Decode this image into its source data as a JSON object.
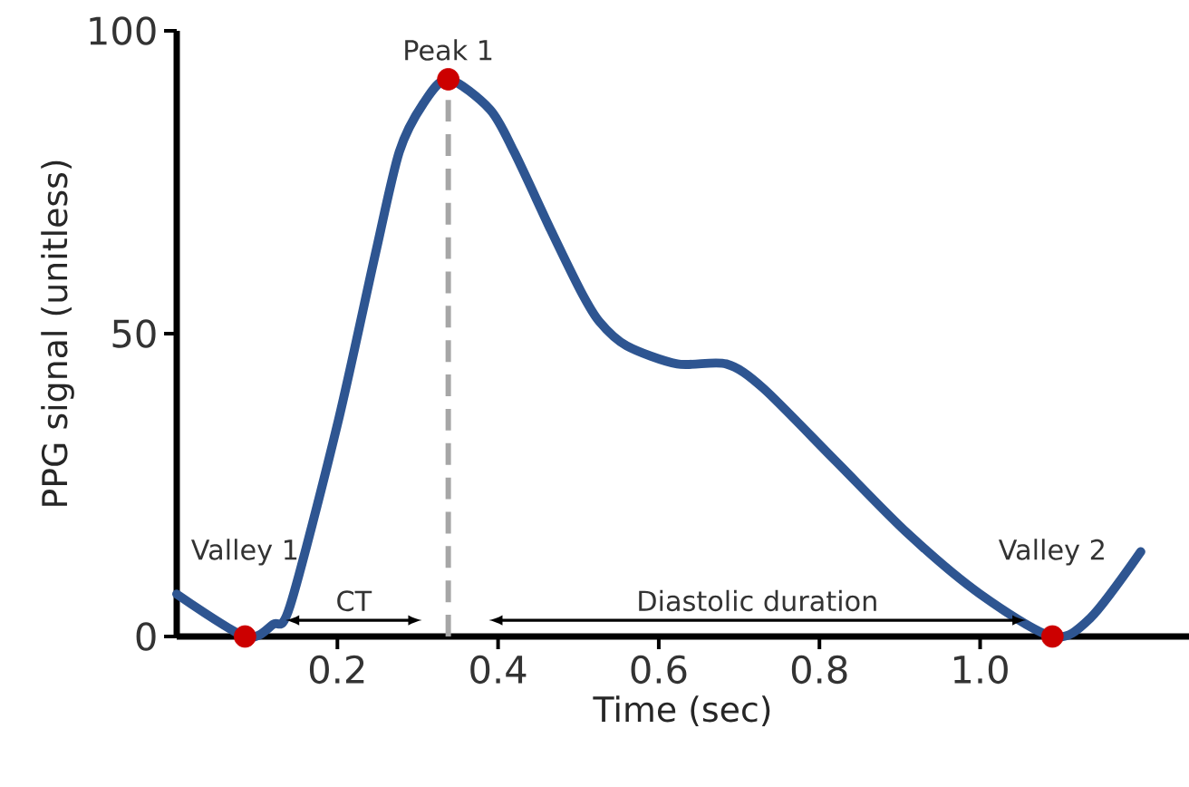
{
  "chart_data": {
    "type": "line",
    "xlabel": "Time (sec)",
    "ylabel": "PPG signal (unitless)",
    "xlim": [
      0,
      1.26
    ],
    "ylim": [
      0,
      100
    ],
    "xticks": [
      0.2,
      0.4,
      0.6,
      0.8,
      {
        "value": 1,
        "label": "1.0"
      }
    ],
    "yticks": [
      0,
      50,
      100
    ],
    "series": [
      {
        "color": "#2e5591",
        "marker": "none",
        "x": [
          0,
          0.085,
          0.12,
          0.141,
          0.2,
          0.247,
          0.277,
          0.307,
          0.338,
          0.39,
          0.42,
          0.466,
          0.503,
          0.526,
          0.56,
          0.623,
          0.684,
          0.73,
          0.82,
          0.91,
          1.0,
          1.09,
          1.137,
          1.2
        ],
        "values": [
          7,
          0,
          2,
          5,
          35,
          63,
          80,
          88,
          92,
          87,
          80,
          67,
          57,
          52,
          48,
          45,
          45,
          41,
          29,
          17,
          7,
          0,
          3,
          14
        ]
      },
      {
        "type": "scatter",
        "color": "#cc0000",
        "marker": "circle",
        "x": [
          0.085,
          0.338,
          1.09
        ],
        "values": [
          0,
          92,
          0
        ]
      }
    ],
    "ref_lines": [
      {
        "axis": "x",
        "value": 0.338,
        "color": "#a6a6a6",
        "line_style": "dashed"
      }
    ],
    "annotations": [
      {
        "text": "Valley 1",
        "x": 0.085,
        "y": 0
      },
      {
        "text": "Peak 1",
        "x": 0.338,
        "y": 92
      },
      {
        "text": "Valley 2",
        "x": 1.09,
        "y": 0
      },
      "CT",
      "Diastolic duration"
    ]
  }
}
